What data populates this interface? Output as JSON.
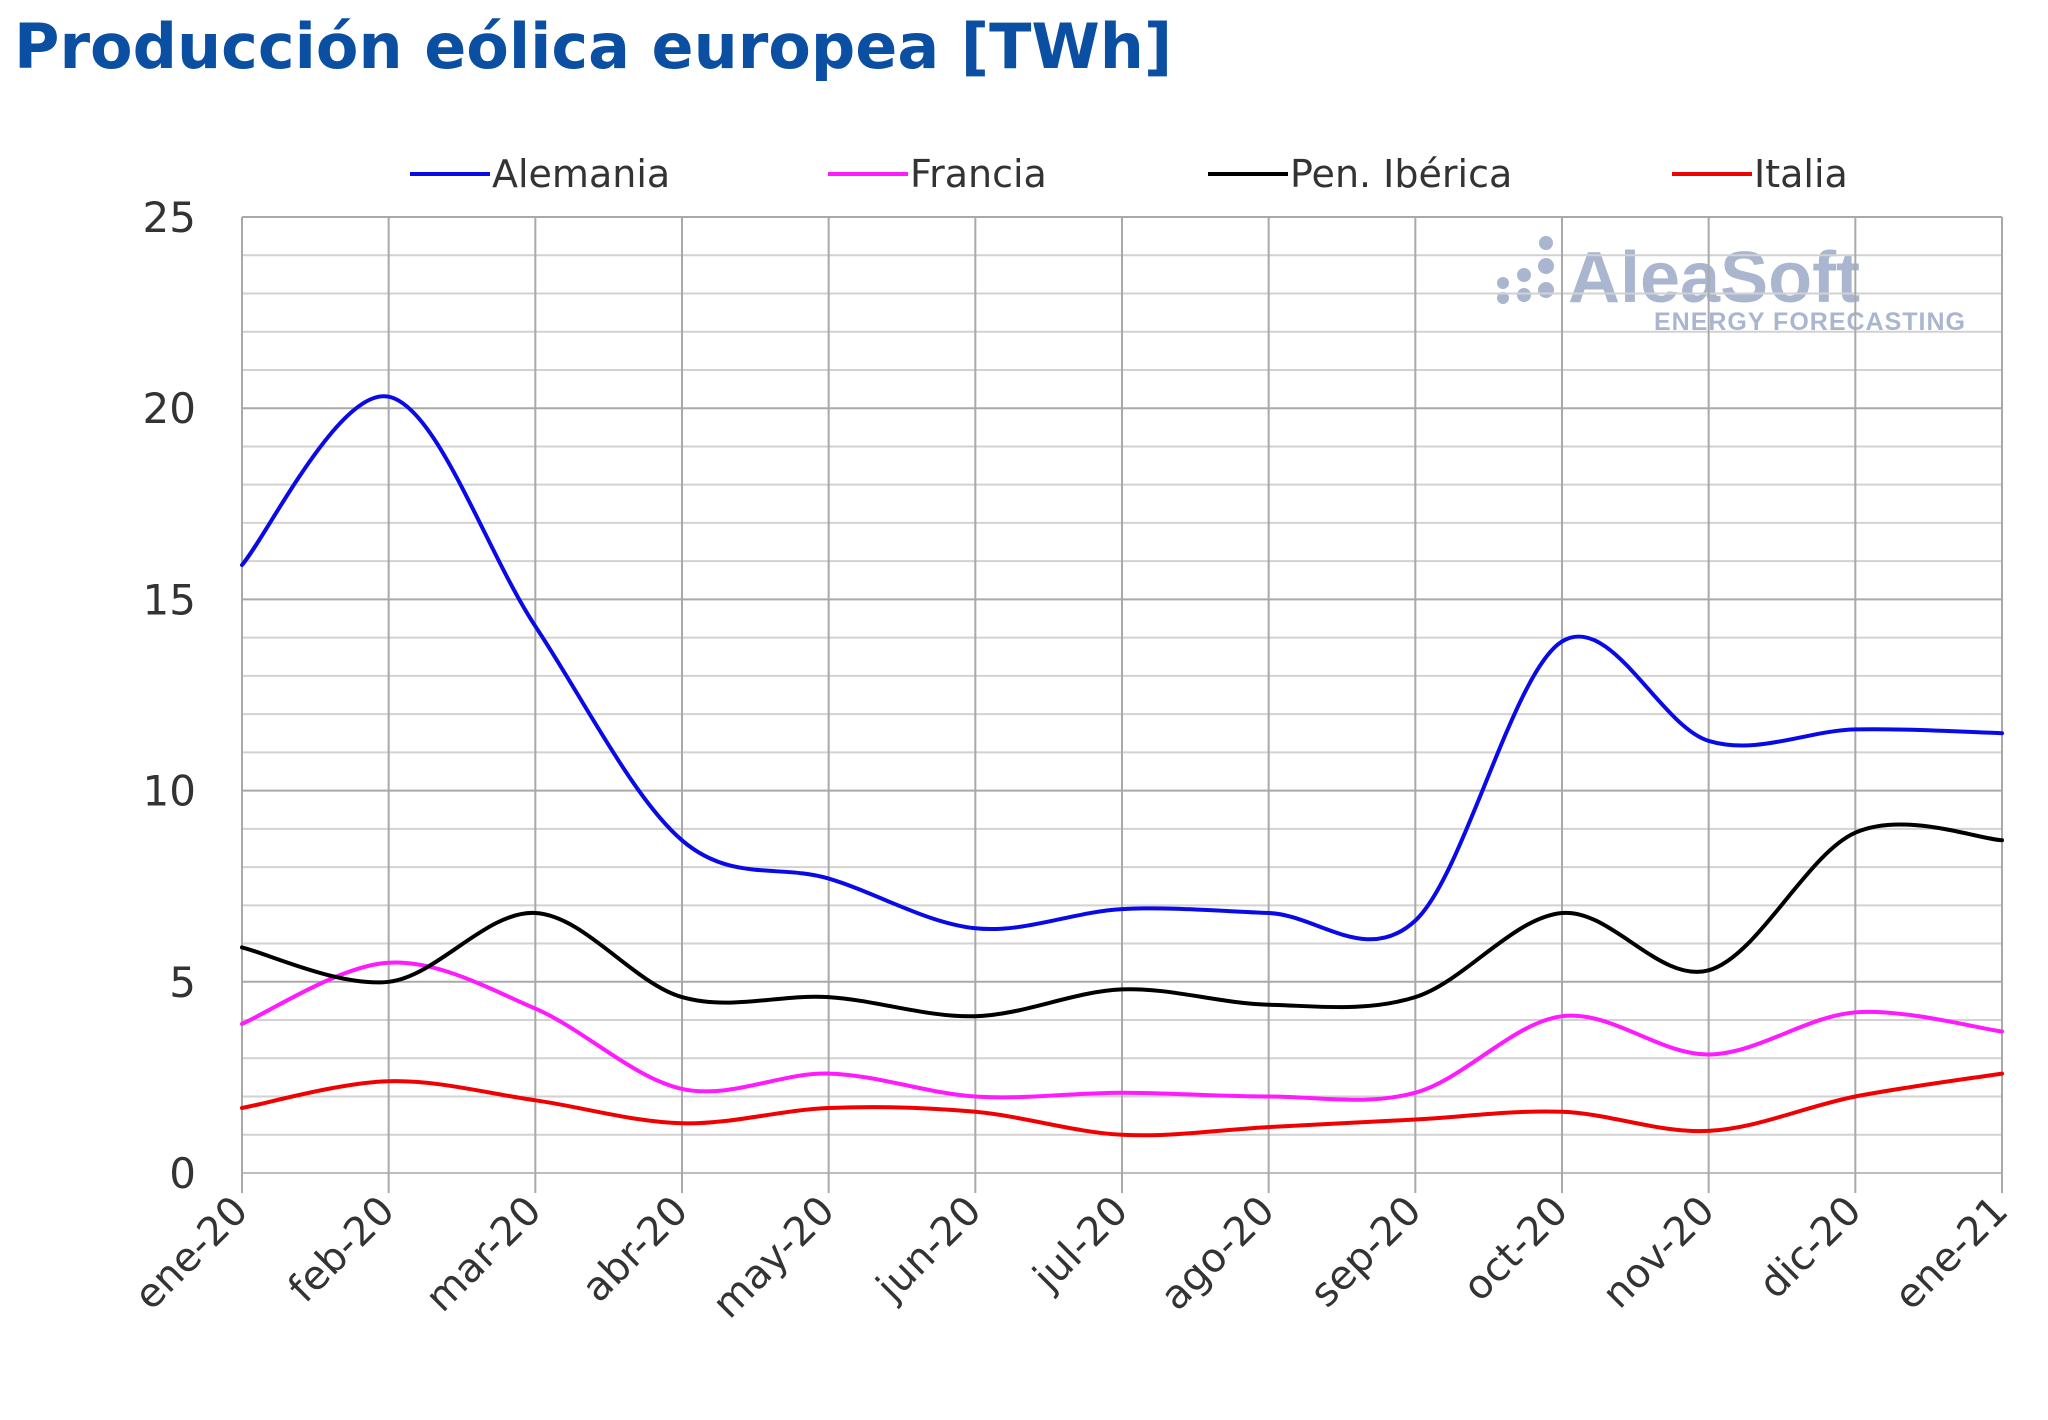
{
  "title": "Producción eólica europea [TWh]",
  "watermark": {
    "brand": "AleaSoft",
    "tagline": "ENERGY FORECASTING"
  },
  "chart_data": {
    "type": "line",
    "title": "Producción eólica europea [TWh]",
    "xlabel": "",
    "ylabel": "",
    "categories": [
      "ene-20",
      "feb-20",
      "mar-20",
      "abr-20",
      "may-20",
      "jun-20",
      "jul-20",
      "ago-20",
      "sep-20",
      "oct-20",
      "nov-20",
      "dic-20",
      "ene-21"
    ],
    "ylim": [
      0,
      25
    ],
    "yticks": [
      "0",
      "5",
      "10",
      "15",
      "20",
      "25"
    ],
    "grid": true,
    "legend_position": "top",
    "series": [
      {
        "name": "Alemania",
        "color": "#0a0ae6",
        "values": [
          15.9,
          20.3,
          14.3,
          8.7,
          7.7,
          6.4,
          6.9,
          6.8,
          6.6,
          13.9,
          11.3,
          11.6,
          11.5
        ]
      },
      {
        "name": "Francia",
        "color": "#ff1aff",
        "values": [
          3.9,
          5.5,
          4.3,
          2.2,
          2.6,
          2.0,
          2.1,
          2.0,
          2.1,
          4.1,
          3.1,
          4.2,
          3.7
        ]
      },
      {
        "name": "Pen. Ibérica",
        "color": "#000000",
        "values": [
          5.9,
          5.0,
          6.8,
          4.6,
          4.6,
          4.1,
          4.8,
          4.4,
          4.6,
          6.8,
          5.3,
          8.9,
          8.7
        ]
      },
      {
        "name": "Italia",
        "color": "#f00000",
        "values": [
          1.7,
          2.4,
          1.9,
          1.3,
          1.7,
          1.6,
          1.0,
          1.2,
          1.4,
          1.6,
          1.1,
          2.0,
          2.6
        ]
      }
    ]
  }
}
